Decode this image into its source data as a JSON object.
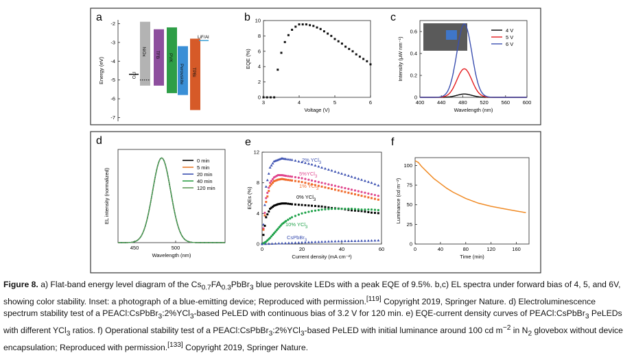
{
  "figure": {
    "label": "Figure 8.",
    "caption_html": "a) Flat-band energy level diagram of the Cs<sub>0.7</sub>FA<sub>0.3</sub>PbBr<sub>3</sub> blue perovskite LEDs with a peak EQE of 9.5%. b,c) EL spectra under forward bias of 4, 5, and 6V, showing color stability. Inset: a photograph of a blue-emitting device; Reproduced with permission.<sup>[119]</sup> Copyright 2019, Springer Nature. d) Electroluminescence spectrum stability test of a PEACl:CsPbBr<sub>3</sub>:2%YCl<sub>3</sub>-based PeLED with continuous bias of 3.2 V for 120 min. e) EQE-current density curves of PEACl:CsPbBr<sub>3</sub> PeLEDs with different YCl<sub>3</sub> ratios. f) Operational stability test of a PEACl:CsPbBr<sub>3</sub>:2%YCl<sub>3</sub>-based PeLED with initial luminance around 100 cd m<sup>−2</sup> in N<sub>2</sub> glovebox without device encapsulation; Reproduced with permission.<sup>[133]</sup> Copyright 2019, Springer Nature."
  },
  "chart_data": [
    {
      "panel": "a",
      "type": "diagram",
      "ylabel": "Energy (eV)",
      "ylim": [
        -7.2,
        -1.8
      ],
      "yticks": [
        "-2",
        "-3",
        "-4",
        "-5",
        "-6",
        "-7"
      ],
      "layers": [
        {
          "name": "ITO",
          "top": -4.7,
          "bottom": -4.7,
          "color": "#000000",
          "style": "line"
        },
        {
          "name": "NiOx",
          "top": -1.9,
          "bottom": -5.3,
          "color": "#b3b3b3",
          "dotted_level": -5.0
        },
        {
          "name": "TFB",
          "top": -2.3,
          "bottom": -5.3,
          "color": "#8e4f9e"
        },
        {
          "name": "PVK",
          "top": -2.2,
          "bottom": -5.7,
          "color": "#2e9e47"
        },
        {
          "name": "Perovskite",
          "top": -3.2,
          "bottom": -5.8,
          "color": "#3a8fd6"
        },
        {
          "name": "TPBi",
          "top": -2.8,
          "bottom": -6.6,
          "color": "#d65a28"
        },
        {
          "name": "LiF/Al",
          "top": -2.9,
          "bottom": -2.9,
          "color": "#3aa0d6",
          "style": "line"
        }
      ]
    },
    {
      "panel": "b",
      "type": "scatter",
      "xlabel": "Voltage (V)",
      "ylabel": "EQE (%)",
      "xlim": [
        3,
        6
      ],
      "ylim": [
        0,
        10
      ],
      "xticks": [
        "3",
        "4",
        "5",
        "6"
      ],
      "yticks": [
        "0",
        "2",
        "4",
        "6",
        "8",
        "10"
      ],
      "x": [
        3.0,
        3.1,
        3.2,
        3.3,
        3.4,
        3.5,
        3.6,
        3.7,
        3.8,
        3.9,
        4.0,
        4.1,
        4.2,
        4.3,
        4.4,
        4.5,
        4.6,
        4.7,
        4.8,
        4.9,
        5.0,
        5.1,
        5.2,
        5.3,
        5.4,
        5.5,
        5.6,
        5.7,
        5.8,
        5.9,
        6.0
      ],
      "y": [
        0,
        0,
        0,
        0,
        3.6,
        5.8,
        7.2,
        8.1,
        8.8,
        9.2,
        9.5,
        9.5,
        9.5,
        9.4,
        9.3,
        9.1,
        8.9,
        8.6,
        8.3,
        8.0,
        7.6,
        7.3,
        7.0,
        6.6,
        6.3,
        6.0,
        5.6,
        5.3,
        5.0,
        4.7,
        4.3
      ]
    },
    {
      "panel": "c",
      "type": "line",
      "xlabel": "Wavelength (nm)",
      "ylabel": "Intensity (μW nm⁻¹)",
      "xlim": [
        400,
        600
      ],
      "ylim": [
        0,
        0.7
      ],
      "xticks": [
        "400",
        "440",
        "480",
        "520",
        "560",
        "600"
      ],
      "yticks": [
        "0",
        "0.2",
        "0.4",
        "0.6"
      ],
      "legend_position": "top-right",
      "series": [
        {
          "name": "4 V",
          "color": "#000000",
          "peak_x": 483,
          "peak": 0.03,
          "width": 14
        },
        {
          "name": "5 V",
          "color": "#e41a1c",
          "peak_x": 483,
          "peak": 0.26,
          "width": 14
        },
        {
          "name": "6 V",
          "color": "#3a4fb0",
          "peak_x": 483,
          "peak": 0.67,
          "width": 14
        }
      ],
      "inset": "photograph"
    },
    {
      "panel": "d",
      "type": "line",
      "xlabel": "Wavelength (nm)",
      "ylabel": "EL intensity (normalized)",
      "xlim": [
        430,
        560
      ],
      "ylim": [
        0,
        1.1
      ],
      "xticks": [
        "450",
        "500"
      ],
      "legend_position": "top-right",
      "series": [
        {
          "name": "0 min",
          "color": "#000000",
          "peak_x": 483,
          "peak": 1,
          "width": 11
        },
        {
          "name": "5 min",
          "color": "#e8792b",
          "peak_x": 483,
          "peak": 1,
          "width": 11
        },
        {
          "name": "20 min",
          "color": "#3a4fb0",
          "peak_x": 483,
          "peak": 1,
          "width": 11
        },
        {
          "name": "40 min",
          "color": "#2e9e47",
          "peak_x": 483,
          "peak": 1,
          "width": 11
        },
        {
          "name": "120 min",
          "color": "#5f9a5a",
          "peak_x": 483,
          "peak": 1,
          "width": 11,
          "dashed": true
        }
      ]
    },
    {
      "panel": "e",
      "type": "scatter",
      "xlabel": "Current density (mA cm⁻²)",
      "ylabel": "EQEs (%)",
      "xlim": [
        0,
        60
      ],
      "ylim": [
        0,
        12
      ],
      "xticks": [
        "0",
        "20",
        "40",
        "60"
      ],
      "yticks": [
        "0",
        "4",
        "8",
        "12"
      ],
      "series": [
        {
          "name": "2% YCl3",
          "label_html": "2% YCl<tspan baseline-shift='sub' font-size='6'>3</tspan>",
          "color": "#3a4fb0",
          "marker": "triangle",
          "x": [
            0,
            2,
            4,
            6,
            8,
            10,
            12,
            15,
            20,
            25,
            30,
            35,
            40,
            45,
            50,
            55,
            60
          ],
          "y": [
            0,
            7.5,
            10,
            10.8,
            11,
            11.2,
            11.1,
            11,
            10.7,
            10.4,
            10,
            9.6,
            9.2,
            8.8,
            8.4,
            8,
            7.5
          ]
        },
        {
          "name": "5%YCl3",
          "label_html": "5%YCl<tspan baseline-shift='sub' font-size='6'>3</tspan>",
          "color": "#e0478e",
          "marker": "circle",
          "x": [
            0,
            2,
            4,
            6,
            8,
            10,
            12,
            15,
            20,
            25,
            30,
            35,
            40,
            45,
            50,
            55,
            60
          ],
          "y": [
            0,
            6,
            8,
            8.7,
            9,
            9,
            8.9,
            8.8,
            8.6,
            8.3,
            8,
            7.7,
            7.4,
            7.1,
            6.8,
            6.5,
            6.2
          ]
        },
        {
          "name": "1% YCl3",
          "label_html": "1% YCl<tspan baseline-shift='sub' font-size='6'>3</tspan>",
          "color": "#f06a2a",
          "marker": "square",
          "x": [
            0,
            2,
            4,
            6,
            8,
            10,
            12,
            15,
            20,
            25,
            30,
            35,
            40,
            45,
            50,
            55,
            60
          ],
          "y": [
            0,
            5.5,
            7.6,
            8.2,
            8.4,
            8.5,
            8.4,
            8.3,
            8.1,
            7.8,
            7.5,
            7.2,
            6.9,
            6.6,
            6.3,
            6.0,
            5.7
          ]
        },
        {
          "name": "0% YCl3",
          "label_html": "0% YCl<tspan baseline-shift='sub' font-size='6'>3</tspan>",
          "color": "#000000",
          "marker": "square",
          "x": [
            0,
            2,
            4,
            6,
            8,
            10,
            12,
            15,
            20,
            25,
            30,
            35,
            40,
            45,
            50,
            55,
            60
          ],
          "y": [
            0,
            3.5,
            4.6,
            5.0,
            5.2,
            5.3,
            5.3,
            5.2,
            5.1,
            5.0,
            4.9,
            4.7,
            4.6,
            4.4,
            4.3,
            4.1,
            4.0
          ]
        },
        {
          "name": "10% YCl3",
          "label_html": "10% YCl<tspan baseline-shift='sub' font-size='6'>3</tspan>",
          "color": "#1fa24a",
          "marker": "circle",
          "x": [
            0,
            2,
            4,
            6,
            8,
            10,
            12,
            15,
            20,
            25,
            30,
            35,
            40,
            45,
            50,
            55,
            60
          ],
          "y": [
            0,
            0.3,
            0.8,
            1.4,
            2.0,
            2.6,
            3.0,
            3.5,
            4.0,
            4.3,
            4.5,
            4.6,
            4.6,
            4.6,
            4.5,
            4.5,
            4.4
          ]
        },
        {
          "name": "CsPbBr3",
          "label_html": "CsPbBr<tspan baseline-shift='sub' font-size='6'>3</tspan>",
          "color": "#3a4fb0",
          "marker": "triangle",
          "x": [
            0,
            5,
            10,
            15,
            20,
            25,
            30,
            35,
            40,
            45,
            50,
            55,
            60
          ],
          "y": [
            0,
            0.05,
            0.1,
            0.15,
            0.2,
            0.25,
            0.3,
            0.35,
            0.38,
            0.4,
            0.42,
            0.45,
            0.48
          ]
        }
      ]
    },
    {
      "panel": "f",
      "type": "line",
      "xlabel": "Time (min)",
      "ylabel": "Luminance (cd m⁻²)",
      "xlim": [
        0,
        180
      ],
      "ylim": [
        0,
        110
      ],
      "xticks": [
        "0",
        "40",
        "80",
        "120",
        "160"
      ],
      "yticks": [
        "0",
        "25",
        "50",
        "75",
        "100"
      ],
      "series": [
        {
          "color": "#f08a24",
          "x": [
            0,
            5,
            10,
            20,
            30,
            40,
            50,
            60,
            80,
            100,
            120,
            140,
            160,
            175
          ],
          "y": [
            106,
            104,
            99,
            91,
            83,
            77,
            71,
            66,
            58,
            52,
            48,
            45,
            42,
            40
          ]
        }
      ]
    }
  ]
}
